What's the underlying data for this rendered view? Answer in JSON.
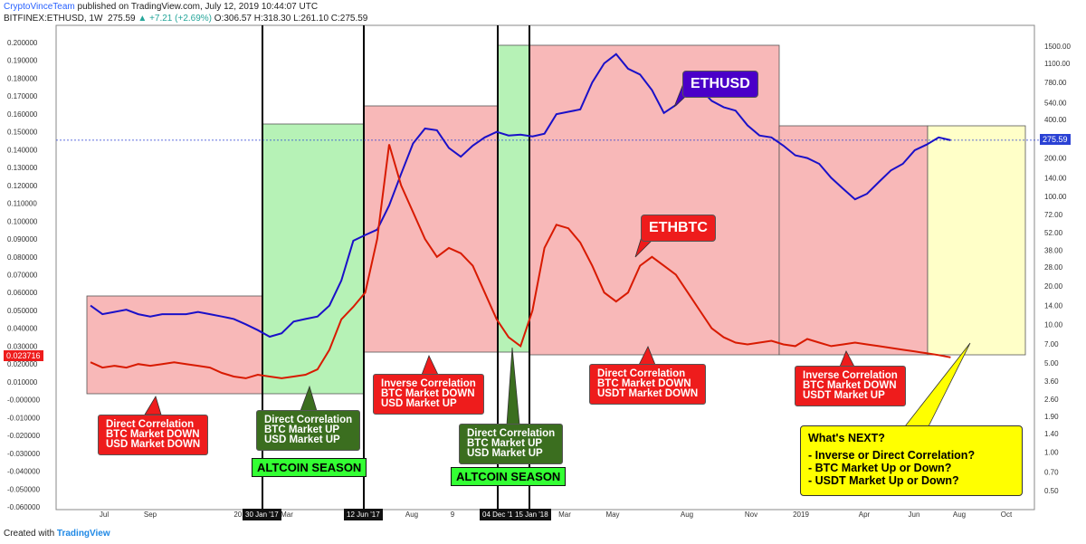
{
  "header": {
    "author": "CryptoVinceTeam",
    "published": "published on TradingView.com, July 12, 2019 10:44:07 UTC",
    "symbol": "BITFINEX:ETHUSD, 1W",
    "price": "275.59",
    "change": "▲ +7.21 (+2.69%)",
    "ohlc": "O:306.57 H:318.30 L:261.10 C:275.59"
  },
  "footer": {
    "created": "Created with",
    "brand": "TradingView"
  },
  "left_price_box": "0.023716",
  "right_price_box": "275.59",
  "date_markers": [
    "30 Jan '17",
    "12 Jun '17",
    "04 Dec '17",
    "15 Jan '18"
  ],
  "tags": {
    "ethusd": "ETHUSD",
    "ethbtc": "ETHBTC"
  },
  "annotations": [
    {
      "lines": [
        "Direct Correlation",
        "BTC Market DOWN",
        "USD Market DOWN"
      ]
    },
    {
      "lines": [
        "Direct Correlation",
        "BTC Market UP",
        "USD Market UP"
      ]
    },
    {
      "lines": [
        "Inverse Correlation",
        "BTC Market DOWN",
        "USD Market UP"
      ]
    },
    {
      "lines": [
        "Direct Correlation",
        "BTC Market UP",
        "USD Market UP"
      ]
    },
    {
      "lines": [
        "Direct Correlation",
        "BTC Market DOWN",
        "USDT Market DOWN"
      ]
    },
    {
      "lines": [
        "Inverse Correlation",
        "BTC Market DOWN",
        "USDT Market UP"
      ]
    }
  ],
  "season_label": "ALTCOIN SEASON",
  "next": {
    "title": "What's NEXT?",
    "lines": [
      "- Inverse or Direct Correlation?",
      "- BTC Market Up or Down?",
      "- USDT Market Up or Down?"
    ]
  },
  "colors": {
    "ethusd": "#1a10c8",
    "ethbtc": "#d81a00",
    "red_zone": "#f8b8b8",
    "green_zone": "#b6f2b6",
    "yellow_zone": "#ffffc8"
  },
  "chart_data": {
    "type": "line",
    "x_labels": [
      "Jul",
      "Sep",
      "201",
      "Mar",
      "Aug",
      "9",
      "Mar",
      "May",
      "Aug",
      "Nov",
      "2019",
      "Apr",
      "Jun",
      "Aug",
      "Oct"
    ],
    "left_axis": {
      "ticks": [
        "0.200000",
        "0.190000",
        "0.180000",
        "0.170000",
        "0.160000",
        "0.150000",
        "0.140000",
        "0.130000",
        "0.120000",
        "0.110000",
        "0.100000",
        "0.090000",
        "0.080000",
        "0.070000",
        "0.060000",
        "0.050000",
        "0.040000",
        "0.030000",
        "0.020000",
        "0.010000",
        "-0.000000",
        "-0.010000",
        "-0.020000",
        "-0.030000",
        "-0.040000",
        "-0.050000",
        "-0.060000"
      ],
      "scale": "linear"
    },
    "right_axis": {
      "ticks": [
        "1500.00",
        "1100.00",
        "780.00",
        "540.00",
        "400.00",
        "280.00",
        "200.00",
        "140.00",
        "100.00",
        "72.00",
        "52.00",
        "38.00",
        "28.00",
        "20.00",
        "14.00",
        "10.00",
        "7.00",
        "5.00",
        "3.60",
        "2.60",
        "1.90",
        "1.40",
        "1.00",
        "0.70",
        "0.50"
      ],
      "scale": "log"
    },
    "series": [
      {
        "name": "ETHUSD",
        "axis": "right",
        "x_weeks": [
          0,
          3,
          6,
          9,
          12,
          15,
          18,
          21,
          24,
          27,
          30,
          33,
          36,
          39,
          42,
          45,
          48,
          51,
          54,
          57,
          60,
          63,
          66,
          69,
          72,
          75,
          78,
          81,
          84,
          87,
          90,
          93,
          96,
          99,
          102,
          105,
          108,
          111,
          114,
          117,
          120,
          123,
          126,
          129,
          132,
          135,
          138,
          141,
          144,
          147,
          150,
          153,
          156,
          159,
          162,
          165,
          168,
          171,
          174,
          177,
          180,
          183,
          186,
          189,
          192,
          195,
          198,
          201,
          204,
          207,
          210,
          213,
          216
        ],
        "values": [
          14,
          12,
          12.5,
          13,
          12,
          11.5,
          12,
          12,
          12,
          12.5,
          12,
          11.5,
          11,
          10,
          9,
          8,
          8.5,
          10.5,
          11,
          11.5,
          14,
          22,
          45,
          50,
          55,
          85,
          150,
          260,
          340,
          330,
          240,
          205,
          250,
          290,
          320,
          300,
          305,
          295,
          310,
          440,
          460,
          480,
          780,
          1100,
          1300,
          1000,
          900,
          680,
          450,
          520,
          640,
          700,
          560,
          500,
          470,
          360,
          300,
          290,
          250,
          210,
          200,
          180,
          140,
          115,
          95,
          105,
          130,
          160,
          180,
          230,
          255,
          290,
          275.59
        ]
      },
      {
        "name": "ETHBTC",
        "axis": "left",
        "x_weeks": [
          0,
          3,
          6,
          9,
          12,
          15,
          18,
          21,
          24,
          27,
          30,
          33,
          36,
          39,
          42,
          45,
          48,
          51,
          54,
          57,
          60,
          63,
          66,
          69,
          72,
          75,
          78,
          81,
          84,
          87,
          90,
          93,
          96,
          99,
          102,
          105,
          108,
          111,
          114,
          117,
          120,
          123,
          126,
          129,
          132,
          135,
          138,
          141,
          144,
          147,
          150,
          153,
          156,
          159,
          162,
          165,
          168,
          171,
          174,
          177,
          180,
          183,
          186,
          189,
          192,
          195,
          198,
          201,
          204,
          207,
          210,
          213,
          216
        ],
        "values": [
          0.021,
          0.018,
          0.019,
          0.018,
          0.02,
          0.019,
          0.02,
          0.021,
          0.02,
          0.019,
          0.018,
          0.015,
          0.013,
          0.012,
          0.014,
          0.013,
          0.012,
          0.013,
          0.014,
          0.017,
          0.028,
          0.045,
          0.052,
          0.06,
          0.09,
          0.143,
          0.12,
          0.105,
          0.09,
          0.08,
          0.085,
          0.082,
          0.075,
          0.06,
          0.045,
          0.035,
          0.03,
          0.05,
          0.085,
          0.098,
          0.096,
          0.088,
          0.075,
          0.06,
          0.055,
          0.06,
          0.075,
          0.08,
          0.075,
          0.07,
          0.06,
          0.05,
          0.04,
          0.035,
          0.032,
          0.031,
          0.032,
          0.033,
          0.031,
          0.03,
          0.034,
          0.032,
          0.03,
          0.031,
          0.032,
          0.031,
          0.03,
          0.029,
          0.028,
          0.027,
          0.026,
          0.025,
          0.023716
        ]
      }
    ]
  }
}
